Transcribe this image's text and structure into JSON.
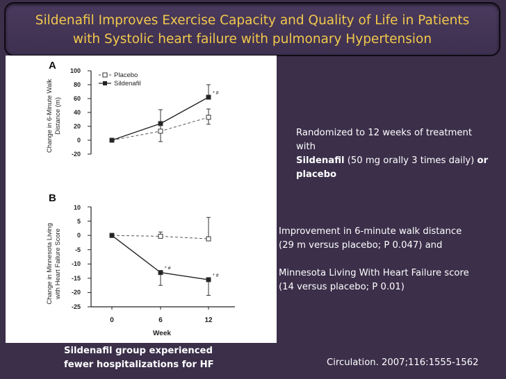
{
  "slide": {
    "title_line1": "Sildenafil Improves Exercise Capacity and Quality of Life in Patients",
    "title_line2": "with Systolic heart failure with pulmonary Hypertension",
    "colors": {
      "background": "#3b2f4a",
      "title": "#f2c94c",
      "text": "#ffffff"
    }
  },
  "methods": {
    "line1": "Randomized to 12 weeks of treatment",
    "line2": "with",
    "drug": "Sildenafil",
    "dose": "(50 mg orally 3 times daily)",
    "or_word": "or",
    "placebo": "placebo"
  },
  "results": {
    "line1": "Improvement in 6-minute walk distance",
    "line2": "(29 m versus placebo; P 0.047) and",
    "line3": "Minnesota Living With Heart Failure score",
    "line4": "(14 versus placebo; P 0.01)"
  },
  "hospitalization": {
    "line1": "Sildenafil group experienced",
    "line2": "fewer hospitalizations for HF"
  },
  "citation": "Circulation. 2007;116:1555-1562",
  "chart_data": [
    {
      "panel_label": "A",
      "type": "line",
      "ylabel_line1": "Change in 6-Minute Walk",
      "ylabel_line2": "Distance (m)",
      "ylim": [
        -20,
        100
      ],
      "yticks": [
        "100",
        "80",
        "60",
        "40",
        "20",
        "0",
        "-20"
      ],
      "ytick_values": [
        100,
        80,
        60,
        40,
        20,
        0,
        -20
      ],
      "x": [
        0,
        6,
        12
      ],
      "legend": [
        "Placebo",
        "Sildenafil"
      ],
      "legend_position": "top-left",
      "series": [
        {
          "name": "Placebo",
          "style": "dashed-open-square",
          "values": [
            0,
            13,
            33
          ],
          "err_upper": [
            0,
            10,
            12
          ],
          "err_lower": [
            0,
            15,
            10
          ]
        },
        {
          "name": "Sildenafil",
          "style": "solid-filled-square",
          "values": [
            0,
            24,
            62
          ],
          "err_upper": [
            0,
            20,
            18
          ],
          "err_lower": [
            0,
            0,
            0
          ]
        }
      ],
      "annotations": [
        {
          "x": 12,
          "y": 62,
          "text": "* #"
        }
      ]
    },
    {
      "panel_label": "B",
      "type": "line",
      "ylabel_line1": "Change in Minnesota Living",
      "ylabel_line2": "with Heart Failure Score",
      "ylim": [
        -25,
        10
      ],
      "yticks": [
        "10",
        "5",
        "0",
        "-5",
        "-10",
        "-15",
        "-20",
        "-25"
      ],
      "ytick_values": [
        10,
        5,
        0,
        -5,
        -10,
        -15,
        -20,
        -25
      ],
      "x": [
        0,
        6,
        12
      ],
      "xticks": [
        "0",
        "6",
        "12"
      ],
      "xlabel": "Week",
      "series": [
        {
          "name": "Placebo",
          "style": "dashed-open-square",
          "values": [
            0,
            -0.3,
            -1.2
          ],
          "err_upper": [
            0,
            1.5,
            7.5
          ],
          "err_lower": [
            0,
            0,
            0
          ]
        },
        {
          "name": "Sildenafil",
          "style": "solid-filled-square",
          "values": [
            0,
            -13,
            -15.5
          ],
          "err_upper": [
            0,
            0,
            0
          ],
          "err_lower": [
            0,
            4.5,
            5.5
          ]
        }
      ],
      "annotations": [
        {
          "x": 6,
          "y": -13,
          "text": "* #"
        },
        {
          "x": 12,
          "y": -15.5,
          "text": "* #"
        }
      ]
    }
  ]
}
